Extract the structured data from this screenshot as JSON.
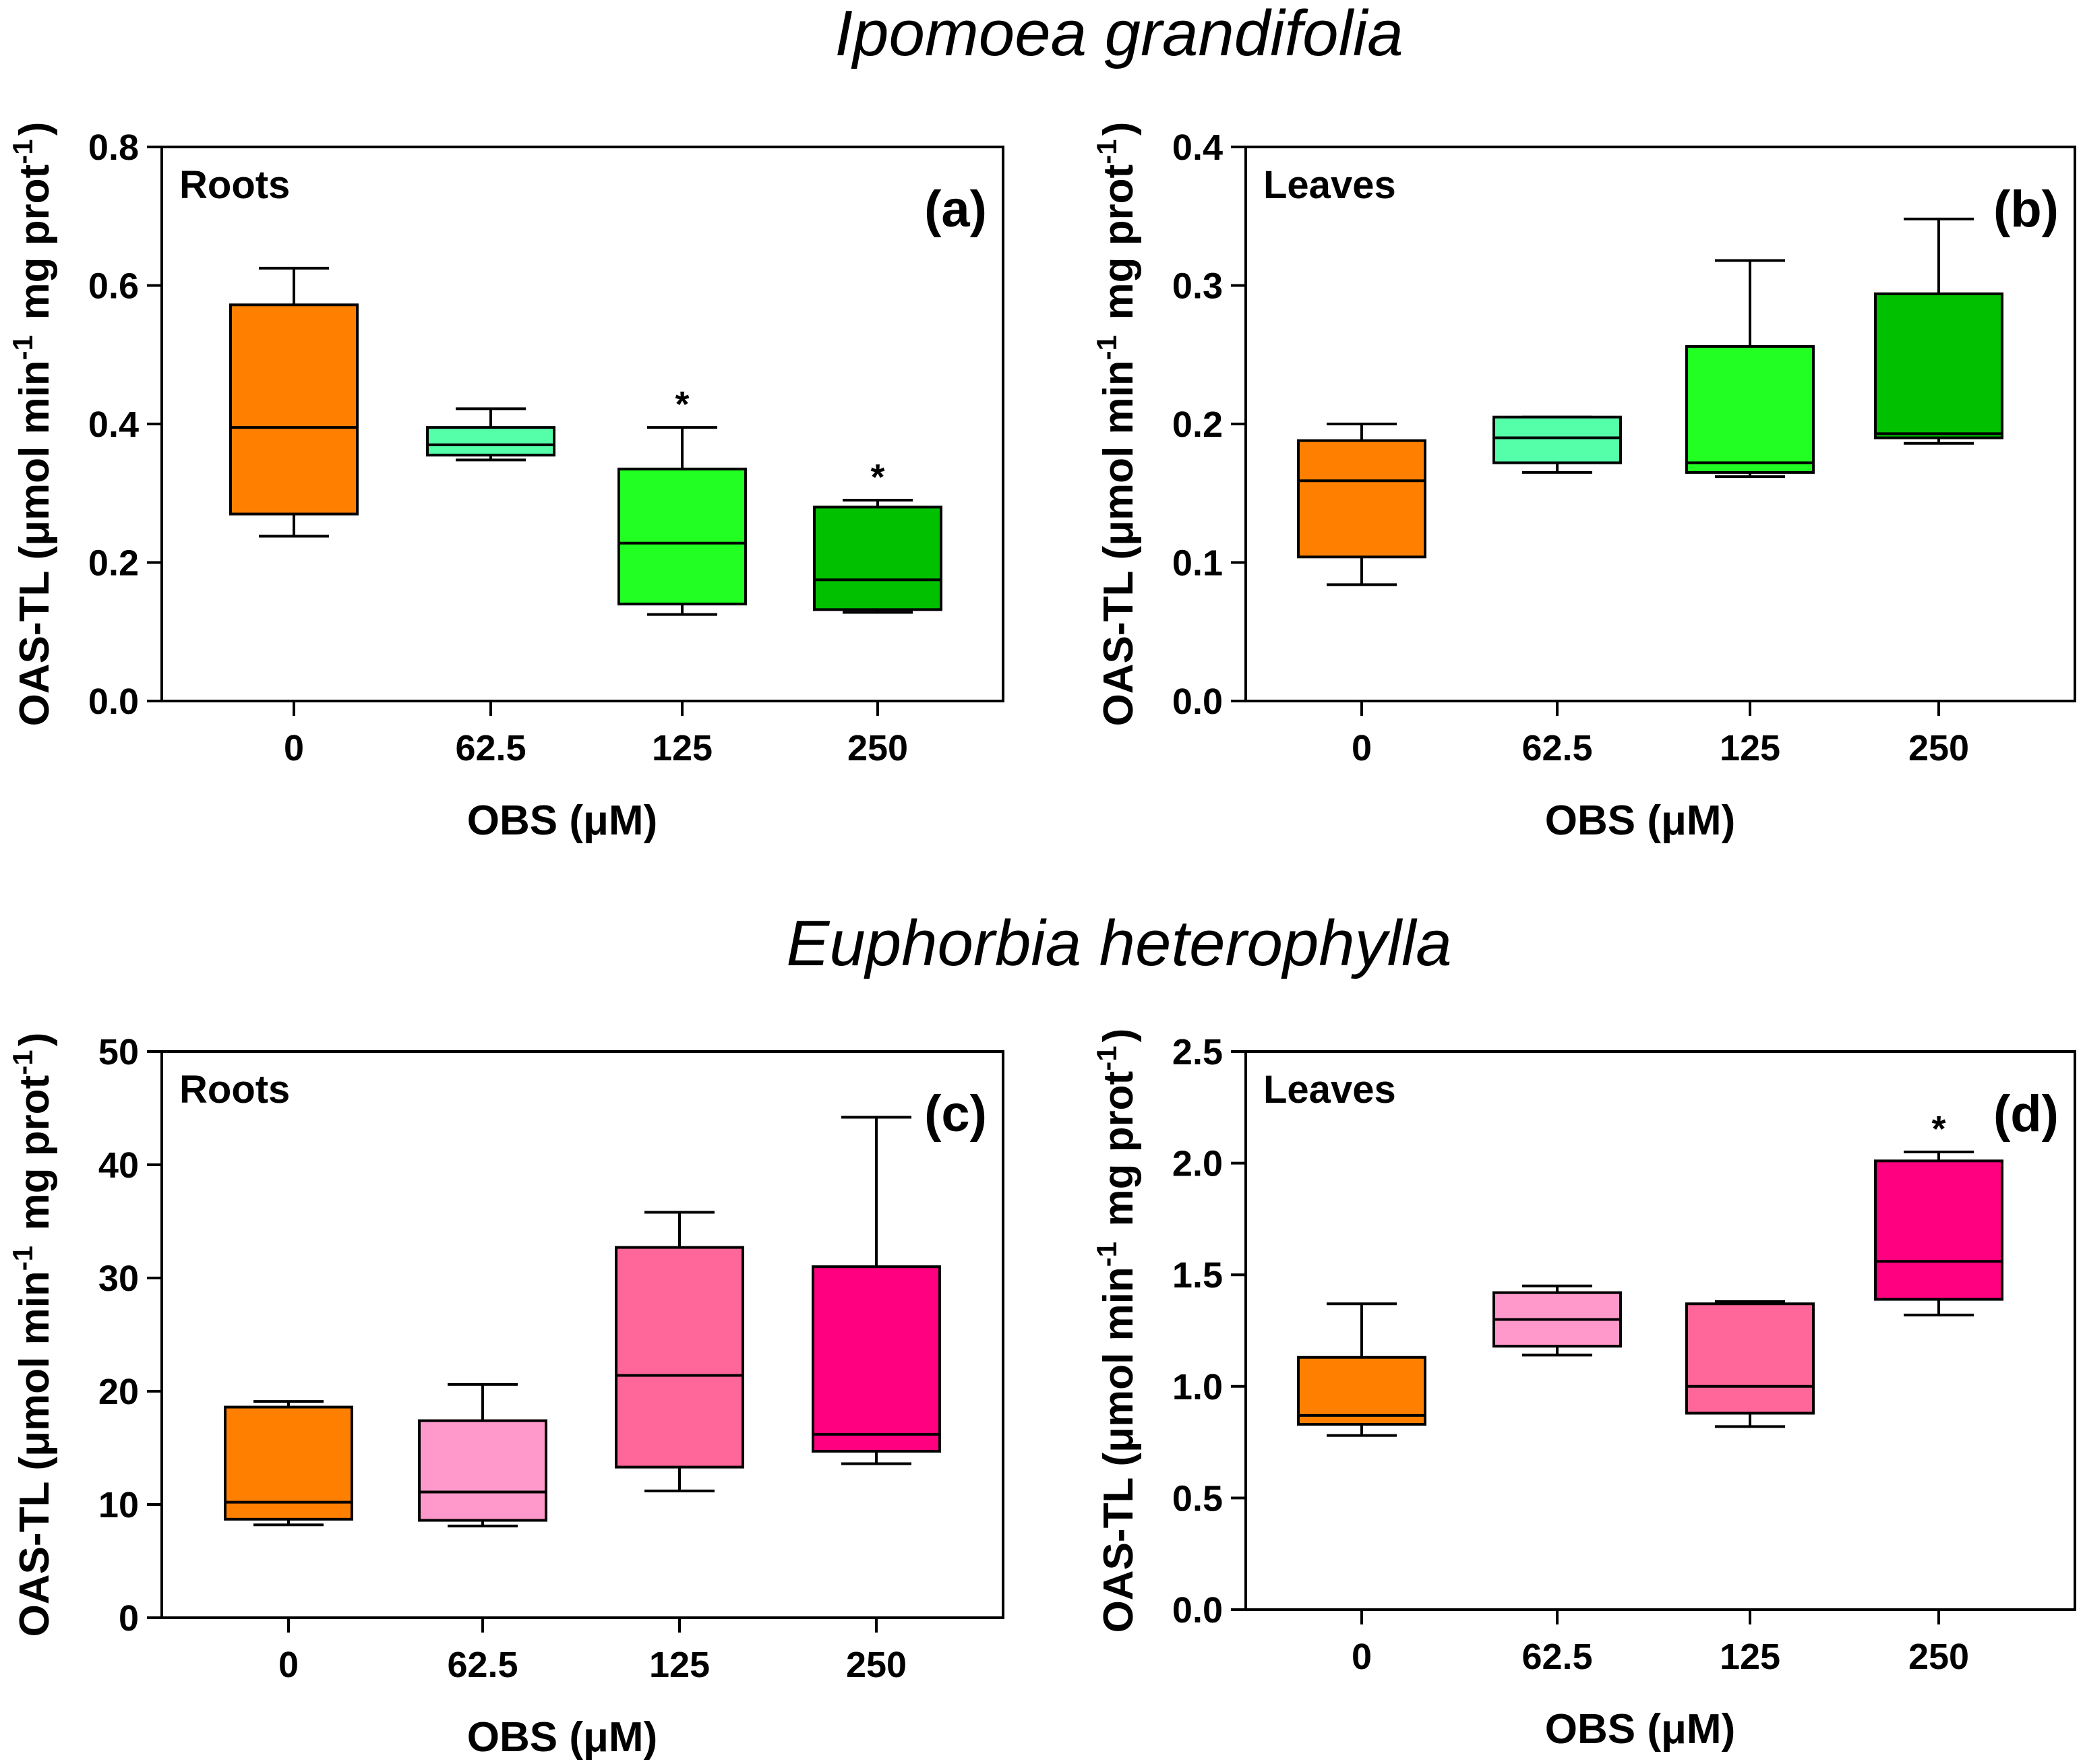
{
  "species_titles": [
    "Ipomoea grandifolia",
    "Euphorbia heterophylla"
  ],
  "chart_data": [
    {
      "type": "box",
      "panel": "(a)",
      "tissue": "Roots",
      "species": "Ipomoea grandifolia",
      "xlabel": "OBS (μM)",
      "ylabel": "OAS-TL (μmol min-1 mg prot-1)",
      "ylim": [
        0,
        0.8
      ],
      "yticks": [
        "0.0",
        "0.2",
        "0.4",
        "0.6",
        "0.8"
      ],
      "categories": [
        "0",
        "62.5",
        "125",
        "250"
      ],
      "colors": [
        "#ff8000",
        "#55ffaa",
        "#22ff22",
        "#00c000"
      ],
      "boxes": [
        {
          "min": 0.238,
          "q1": 0.27,
          "median": 0.395,
          "q3": 0.572,
          "max": 0.625,
          "sig": ""
        },
        {
          "min": 0.348,
          "q1": 0.355,
          "median": 0.37,
          "q3": 0.395,
          "max": 0.422,
          "sig": ""
        },
        {
          "min": 0.125,
          "q1": 0.14,
          "median": 0.228,
          "q3": 0.335,
          "max": 0.395,
          "sig": "*"
        },
        {
          "min": 0.128,
          "q1": 0.132,
          "median": 0.175,
          "q3": 0.28,
          "max": 0.29,
          "sig": "*"
        }
      ]
    },
    {
      "type": "box",
      "panel": "(b)",
      "tissue": "Leaves",
      "species": "Ipomoea grandifolia",
      "xlabel": "OBS (μM)",
      "ylabel": "OAS-TL (μmol min-1 mg prot-1)",
      "ylim": [
        0,
        0.4
      ],
      "yticks": [
        "0.0",
        "0.1",
        "0.2",
        "0.3",
        "0.4"
      ],
      "categories": [
        "0",
        "62.5",
        "125",
        "250"
      ],
      "colors": [
        "#ff8000",
        "#55ffaa",
        "#22ff22",
        "#00c000"
      ],
      "boxes": [
        {
          "min": 0.084,
          "q1": 0.104,
          "median": 0.159,
          "q3": 0.188,
          "max": 0.2,
          "sig": ""
        },
        {
          "min": 0.165,
          "q1": 0.172,
          "median": 0.19,
          "q3": 0.205,
          "max": 0.205,
          "sig": ""
        },
        {
          "min": 0.162,
          "q1": 0.165,
          "median": 0.172,
          "q3": 0.256,
          "max": 0.318,
          "sig": ""
        },
        {
          "min": 0.186,
          "q1": 0.19,
          "median": 0.193,
          "q3": 0.294,
          "max": 0.348,
          "sig": ""
        }
      ]
    },
    {
      "type": "box",
      "panel": "(c)",
      "tissue": "Roots",
      "species": "Euphorbia heterophylla",
      "xlabel": "OBS (μM)",
      "ylabel": "OAS-TL (μmol min-1 mg prot-1)",
      "ylim": [
        0,
        50
      ],
      "yticks": [
        "0",
        "10",
        "20",
        "30",
        "40",
        "50"
      ],
      "categories": [
        "0",
        "62.5",
        "125",
        "250"
      ],
      "colors": [
        "#ff8000",
        "#ff99cc",
        "#ff6699",
        "#ff0080"
      ],
      "boxes": [
        {
          "min": 8.2,
          "q1": 8.7,
          "median": 10.2,
          "q3": 18.6,
          "max": 19.1,
          "sig": ""
        },
        {
          "min": 8.1,
          "q1": 8.6,
          "median": 11.1,
          "q3": 17.4,
          "max": 20.6,
          "sig": ""
        },
        {
          "min": 11.2,
          "q1": 13.3,
          "median": 21.4,
          "q3": 32.7,
          "max": 35.8,
          "sig": ""
        },
        {
          "min": 13.6,
          "q1": 14.7,
          "median": 16.2,
          "q3": 31.0,
          "max": 44.2,
          "sig": ""
        }
      ]
    },
    {
      "type": "box",
      "panel": "(d)",
      "tissue": "Leaves",
      "species": "Euphorbia heterophylla",
      "xlabel": "OBS (μM)",
      "ylabel": "OAS-TL (μmol min-1 mg prot-1)",
      "ylim": [
        0,
        2.5
      ],
      "yticks": [
        "0.0",
        "0.5",
        "1.0",
        "1.5",
        "2.0",
        "2.5"
      ],
      "categories": [
        "0",
        "62.5",
        "125",
        "250"
      ],
      "colors": [
        "#ff8000",
        "#ff99cc",
        "#ff6699",
        "#ff0080"
      ],
      "boxes": [
        {
          "min": 0.78,
          "q1": 0.83,
          "median": 0.87,
          "q3": 1.13,
          "max": 1.37,
          "sig": ""
        },
        {
          "min": 1.14,
          "q1": 1.18,
          "median": 1.3,
          "q3": 1.42,
          "max": 1.45,
          "sig": ""
        },
        {
          "min": 0.82,
          "q1": 0.88,
          "median": 1.0,
          "q3": 1.37,
          "max": 1.38,
          "sig": ""
        },
        {
          "min": 1.32,
          "q1": 1.39,
          "median": 1.56,
          "q3": 2.01,
          "max": 2.05,
          "sig": "*"
        }
      ]
    }
  ]
}
